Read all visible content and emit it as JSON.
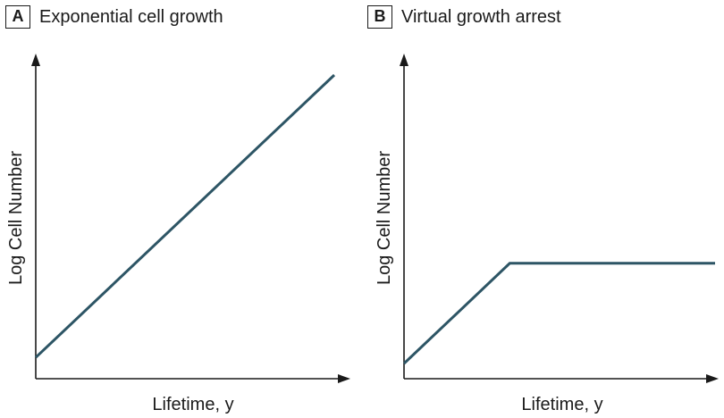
{
  "colors": {
    "series": "#2d5565",
    "axis": "#1a1a1a"
  },
  "chart_data": [
    {
      "type": "line",
      "panel_letter": "A",
      "title": "Exponential cell growth",
      "xlabel": "Lifetime, y",
      "ylabel": "Log Cell Number",
      "xlim": [
        0,
        100
      ],
      "ylim": [
        0,
        100
      ],
      "ticks": "none",
      "grid": false,
      "series": [
        {
          "x": [
            0,
            100
          ],
          "y": [
            7,
            100
          ]
        }
      ]
    },
    {
      "type": "line",
      "panel_letter": "B",
      "title": "Virtual growth arrest",
      "xlabel": "Lifetime, y",
      "ylabel": "Log Cell Number",
      "xlim": [
        0,
        100
      ],
      "ylim": [
        0,
        100
      ],
      "ticks": "none",
      "grid": false,
      "series": [
        {
          "x": [
            0,
            34,
            100
          ],
          "y": [
            5,
            38,
            38
          ]
        }
      ]
    }
  ]
}
